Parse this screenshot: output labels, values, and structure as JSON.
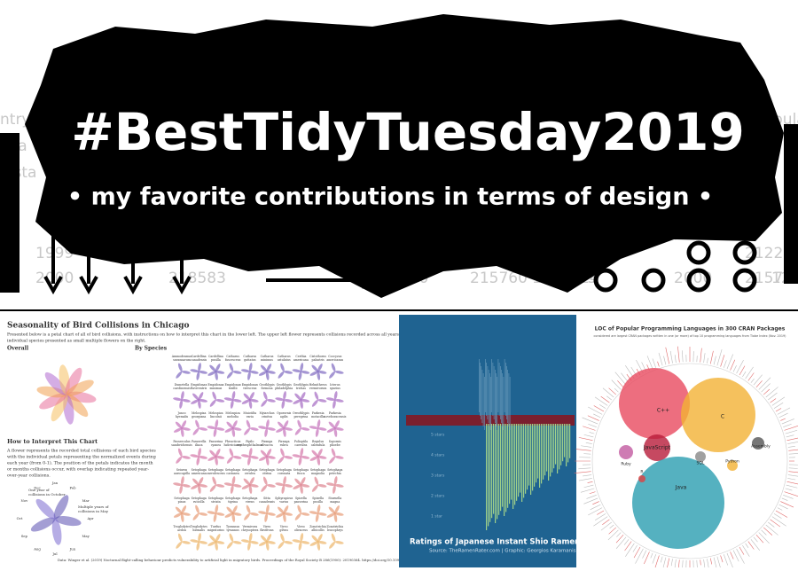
{
  "banner": {
    "title": "#BestTidyTuesday2019",
    "subtitle": "• my favorite contributions in terms of design •",
    "background_fragments": [
      "ntry",
      "ista",
      "nista",
      "pula",
      "1999",
      "215272",
      "2000",
      "218583",
      "2060",
      "215760",
      "1280424",
      "1999",
      "212243",
      "1275",
      "2000",
      "215796",
      "1280"
    ]
  },
  "birds": {
    "title": "Seasonality of Bird Collisions in Chicago",
    "description": [
      "Presented below is a petal chart of all of bird collisions, with instructions on how to interpret this chart in the lower left. The upper left flower represents collisions recorded across all years and species, with",
      "individual species presented as small multiple flowers on the right."
    ],
    "overall": "Overall",
    "by_species": "By Species",
    "how_title": "How to Interpret This Chart",
    "how_text": [
      "A flower represents the recorded total collisions of each bird species",
      "with the individual petals representing the normalized events during",
      "each year (from 0-1). The position of the petals indicates the month",
      "or months collisions occur, with overlap indicating repeated year-",
      "over-year collisions."
    ],
    "annotation_one": [
      "One year of",
      "collisions in October"
    ],
    "annotation_multi": [
      "Multiple years of",
      "collisions in May"
    ],
    "months": [
      "Jan",
      "Feb",
      "Mar",
      "Apr",
      "May",
      "Jun",
      "Jul",
      "Aug",
      "Sep",
      "Oct",
      "Nov",
      "Dec"
    ],
    "species": [
      "Ammodramus savannarum",
      "Cardellina canadensis",
      "Cardellina pusilla",
      "Catharus fuscescens",
      "Catharus guttatus",
      "Catharus minimus",
      "Catharus ustulatus",
      "Certhia americana",
      "Cistothorus palustris",
      "Coccyzus americanus",
      "Dumetella carolinensis",
      "Empidonax flaviventris",
      "Empidonax minimus",
      "Empidonax traillii",
      "Empidonax virescens",
      "Geothlypis formosa",
      "Geothlypis philadelphia",
      "Geothlypis trichas",
      "Helmitheros vermivorum",
      "Icterus spurius",
      "Junco hyemalis",
      "Melospiza georgiana",
      "Melospiza lincolnii",
      "Melospiza melodia",
      "Mniotilta varia",
      "Myiarchus crinitus",
      "Oporornis agilis",
      "Oreothlypis peregrina",
      "Parkesia motacilla",
      "Parkesia noveboracensis",
      "Passerculus sandwichensis",
      "Passerella iliaca",
      "Passerina cyanea",
      "Pheucticus ludovicianus",
      "Pipilo erythrophthalmus",
      "Piranga olivacea",
      "Piranga rubra",
      "Polioptila caerulea",
      "Regulus calendula",
      "Sayornis phoebe",
      "Seiurus aurocapilla",
      "Setophaga americana",
      "Setophaga caerulescens",
      "Setophaga castanea",
      "Setophaga cerulea",
      "Setophaga citrina",
      "Setophaga coronata",
      "Setophaga fusca",
      "Setophaga magnolia",
      "Setophaga petechia",
      "Setophaga pinus",
      "Setophaga ruticilla",
      "Setophaga striata",
      "Setophaga tigrina",
      "Setophaga virens",
      "Sitta canadensis",
      "Sphyrapicus varius",
      "Spizella passerina",
      "Spizella pusilla",
      "Sturnella magna",
      "Troglodytes aedon",
      "Troglodytes hiemalis",
      "Turdus migratorius",
      "Tyrannus tyrannus",
      "Vermivora chrysoptera",
      "Vireo flavifrons",
      "Vireo gilvus",
      "Vireo olivaceus",
      "Zonotrichia albicollis",
      "Zonotrichia leucophrys"
    ],
    "footer": "Data: Winger et al. (2019) Nocturnal flight-calling behaviour predicts vulnerability to artificial light in migratory birds. Proceedings of the Royal Society B 286(1900): 20190364. https://doi.org/10.1098/rspb.2019.0364 | Graphic: @jakekaupp"
  },
  "ramen": {
    "title": "Ratings of Japanese Instant Shio Ramen",
    "source": "Source: TheRamenRater.com | Graphic: Georgios Karamanis",
    "axis_labels": [
      "5 stars",
      "4 stars",
      "3 stars",
      "2 stars",
      "1 star"
    ]
  },
  "loc": {
    "title": "LOC of Popular Programming Languages in 300 CRAN Packages",
    "subtitle": "considered are largest CRAN packages written in one (or more) of top 10 programming languages from Tiobe Index (Nov. 2019)",
    "languages": [
      "C++",
      "C",
      "JavaScript",
      "Java",
      "Ruby",
      "SQL",
      "Python",
      "Assembly",
      "R"
    ]
  }
}
